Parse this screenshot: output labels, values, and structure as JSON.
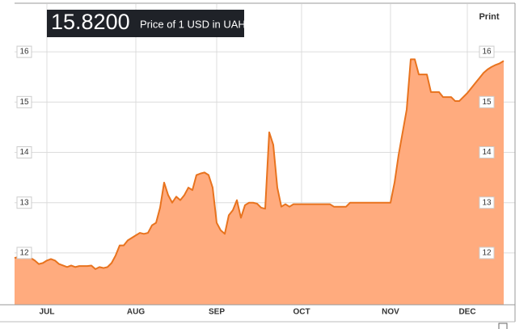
{
  "chart_data": {
    "type": "area",
    "price_label": "15.8200",
    "subtitle": "Price of 1 USD in UAH",
    "print_label": "Print",
    "color": "#e8731e",
    "fill": "#ffab7e",
    "grid": true,
    "ylim": [
      10.97,
      16.95
    ],
    "yticks": [
      12,
      13,
      14,
      15,
      16
    ],
    "categories": [
      null,
      null,
      null,
      null,
      null,
      null,
      null,
      null,
      "JUL",
      null,
      null,
      null,
      null,
      null,
      null,
      null,
      null,
      null,
      null,
      null,
      null,
      null,
      null,
      null,
      null,
      null,
      null,
      null,
      null,
      null,
      "AUG",
      null,
      null,
      null,
      null,
      null,
      null,
      null,
      null,
      null,
      null,
      null,
      null,
      null,
      null,
      null,
      null,
      null,
      null,
      null,
      "SEP",
      null,
      null,
      null,
      null,
      null,
      null,
      null,
      null,
      null,
      null,
      null,
      null,
      null,
      null,
      null,
      null,
      null,
      null,
      null,
      null,
      "OCT",
      null,
      null,
      null,
      null,
      null,
      null,
      null,
      null,
      null,
      null,
      null,
      null,
      null,
      null,
      null,
      null,
      null,
      null,
      null,
      null,
      null,
      "NOV",
      null,
      null,
      null,
      null,
      null,
      null,
      null,
      null,
      null,
      null,
      null,
      null,
      null,
      null,
      null,
      null,
      null,
      null,
      "DEC",
      null,
      null,
      null,
      null,
      null,
      null,
      null,
      null,
      null
    ],
    "values": [
      11.9,
      11.92,
      11.9,
      11.9,
      11.9,
      11.85,
      11.78,
      11.8,
      11.85,
      11.88,
      11.85,
      11.78,
      11.75,
      11.72,
      11.75,
      11.72,
      11.74,
      11.74,
      11.74,
      11.75,
      11.68,
      11.72,
      11.7,
      11.72,
      11.8,
      11.95,
      12.15,
      12.15,
      12.25,
      12.3,
      12.35,
      12.4,
      12.38,
      12.4,
      12.55,
      12.6,
      12.9,
      13.4,
      13.15,
      13.0,
      13.12,
      13.05,
      13.15,
      13.3,
      13.25,
      13.55,
      13.58,
      13.6,
      13.55,
      13.3,
      12.6,
      12.45,
      12.38,
      12.75,
      12.85,
      13.05,
      12.7,
      12.95,
      13.0,
      13.0,
      12.98,
      12.9,
      12.88,
      14.4,
      14.15,
      13.3,
      12.92,
      12.97,
      12.92,
      12.97,
      12.97,
      12.97,
      12.97,
      12.97,
      12.97,
      12.97,
      12.97,
      12.97,
      12.97,
      12.92,
      12.92,
      12.92,
      12.92,
      13.0,
      13.0,
      13.0,
      13.0,
      13.0,
      13.0,
      13.0,
      13.0,
      13.0,
      13.0,
      13.0,
      13.4,
      13.95,
      14.4,
      14.85,
      15.85,
      15.85,
      15.55,
      15.55,
      15.55,
      15.2,
      15.2,
      15.2,
      15.1,
      15.1,
      15.1,
      15.02,
      15.02,
      15.1,
      15.18,
      15.28,
      15.38,
      15.48,
      15.58,
      15.65,
      15.7,
      15.74,
      15.77,
      15.82
    ]
  }
}
